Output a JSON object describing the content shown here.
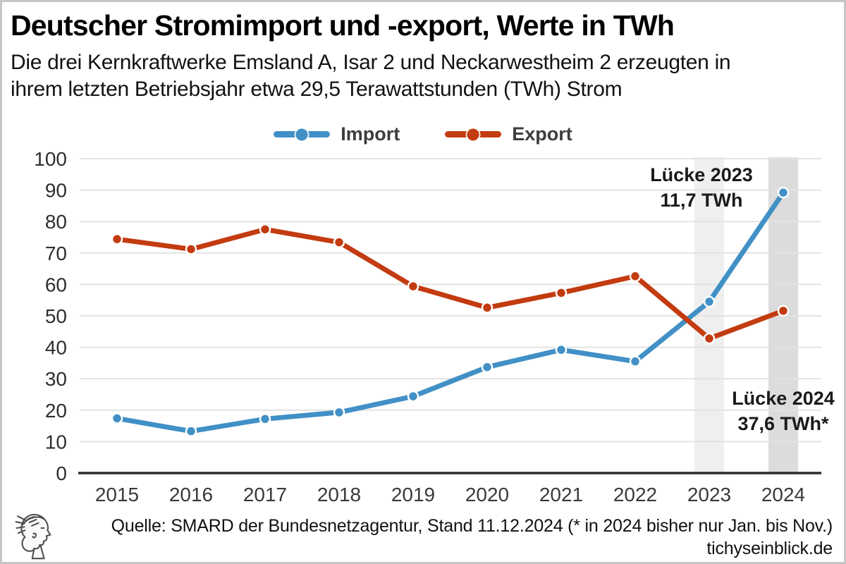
{
  "header": {
    "title": "Deutscher Stromimport und -export, Werte in TWh",
    "subtitle_line1": "Die drei Kernkraftwerke Emsland A, Isar 2 und Neckarwestheim 2 erzeugten in",
    "subtitle_line2": "ihrem letzten Betriebsjahr etwa 29,5 Terawattstunden (TWh) Strom"
  },
  "chart_data": {
    "type": "line",
    "title": "Deutscher Stromimport und -export, Werte in TWh",
    "categories": [
      "2015",
      "2016",
      "2017",
      "2018",
      "2019",
      "2020",
      "2021",
      "2022",
      "2023",
      "2024"
    ],
    "series": [
      {
        "name": "Import",
        "color": "#4190c6",
        "values": [
          17.4,
          13.3,
          17.2,
          19.3,
          24.4,
          33.7,
          39.2,
          35.5,
          54.5,
          89.2
        ]
      },
      {
        "name": "Export",
        "color": "#c33b10",
        "values": [
          74.4,
          71.2,
          77.5,
          73.4,
          59.4,
          52.6,
          57.3,
          62.6,
          42.8,
          51.6
        ]
      }
    ],
    "xlabel": "",
    "ylabel": "",
    "ylim": [
      0,
      100
    ],
    "ytick_step": 10,
    "grid": true,
    "legend_position": "top-center",
    "highlight_bands": [
      {
        "category": "2023",
        "color": "#efefef"
      },
      {
        "category": "2024",
        "color": "#dcdcdc"
      }
    ],
    "annotations": [
      {
        "lines": [
          "Lücke 2023",
          "11,7 TWh"
        ],
        "anchor_category": "2023"
      },
      {
        "lines": [
          "Lücke 2024",
          "37,6 TWh*"
        ],
        "anchor_category": "2024"
      }
    ],
    "grid_color": "#e2e2e2",
    "axis_color": "#2b2b2b",
    "tick_label_color": "#2e2e2e",
    "annotation_color": "#1a1a1a"
  },
  "footer": {
    "source": "Quelle: SMARD der Bundesnetzagentur, Stand 11.12.2024 (* in 2024 bisher nur Jan. bis Nov.)",
    "website": "tichyseinblick.de"
  }
}
